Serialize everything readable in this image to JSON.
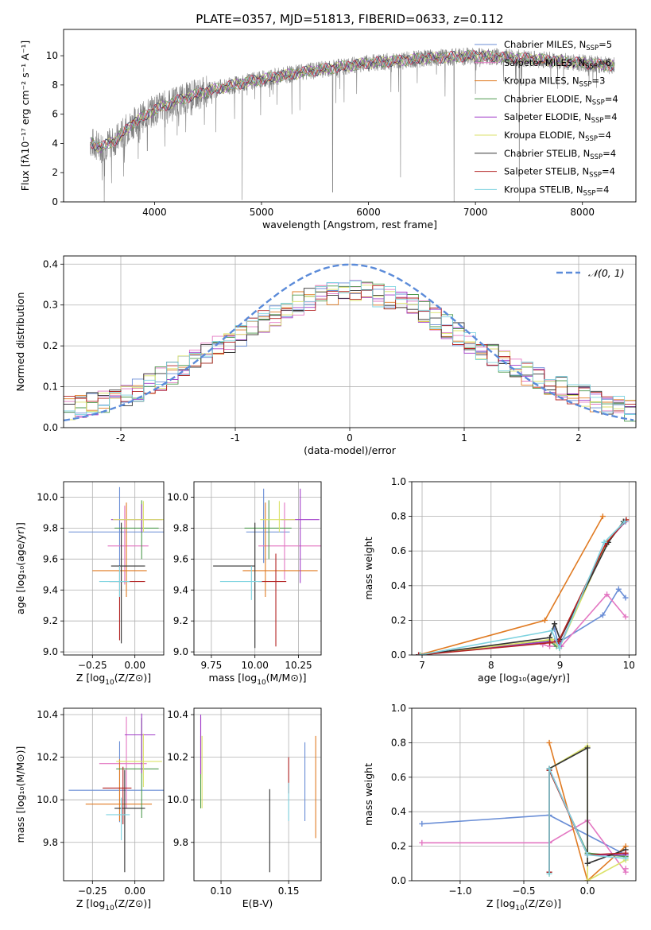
{
  "figure_title": "PLATE=0357, MJD=51813, FIBERID=0633, z=0.112",
  "model_colors": [
    "#6a8ed6",
    "#e377c2",
    "#e07b23",
    "#4e9a4e",
    "#a03cc9",
    "#dbe268",
    "#333333",
    "#b22222",
    "#7fd3e0"
  ],
  "chart_data": [
    {
      "id": "spectrum",
      "type": "line",
      "title": "PLATE=0357, MJD=51813, FIBERID=0633, z=0.112",
      "xlabel": "wavelength [Angstrom, rest frame]",
      "ylabel": "Flux [fλ10⁻¹⁷ erg cm⁻² s⁻¹ A⁻¹]",
      "xlim": [
        3150,
        8500
      ],
      "ylim": [
        0,
        11.8
      ],
      "xticks": [
        4000,
        5000,
        6000,
        7000,
        8000
      ],
      "yticks": [
        0,
        2,
        4,
        6,
        8,
        10
      ],
      "grid": false,
      "legend_position": "right",
      "data_color": "#808080",
      "continuum": {
        "x": [
          3400,
          3500,
          3650,
          3800,
          4000,
          4200,
          4500,
          4800,
          5000,
          5500,
          6000,
          6500,
          7000,
          7500,
          8000,
          8300
        ],
        "y": [
          4.1,
          3.7,
          4.3,
          5.4,
          6.3,
          6.9,
          7.6,
          8.1,
          8.4,
          9.0,
          9.5,
          9.8,
          10.0,
          9.8,
          9.5,
          9.3
        ]
      },
      "absorption_lines": [
        {
          "x": 3530,
          "depth": 4.0
        },
        {
          "x": 3710,
          "depth": 3.0
        },
        {
          "x": 3933,
          "depth": 2.5
        },
        {
          "x": 4100,
          "depth": 1.5
        },
        {
          "x": 4340,
          "depth": 1.3
        },
        {
          "x": 4820,
          "depth": 8.0
        },
        {
          "x": 5665,
          "depth": 8.5
        },
        {
          "x": 5890,
          "depth": 2.0
        },
        {
          "x": 6300,
          "depth": 8.0
        },
        {
          "x": 6800,
          "depth": 9.9
        },
        {
          "x": 7410,
          "depth": 9.8
        }
      ],
      "series": [
        {
          "name": "Chabrier MILES, N_SSP=5",
          "label_main": "Chabrier MILES, N",
          "label_sub": "SSP",
          "label_tail": "=5",
          "color": "#6a8ed6"
        },
        {
          "name": "Salpeter MILES, N_SSP=6",
          "label_main": "Salpeter MILES, N",
          "label_sub": "SSP",
          "label_tail": "=6",
          "color": "#e377c2"
        },
        {
          "name": "Kroupa MILES, N_SSP=3",
          "label_main": "Kroupa MILES, N",
          "label_sub": "SSP",
          "label_tail": "=3",
          "color": "#e07b23"
        },
        {
          "name": "Chabrier ELODIE, N_SSP=4",
          "label_main": "Chabrier ELODIE, N",
          "label_sub": "SSP",
          "label_tail": "=4",
          "color": "#4e9a4e"
        },
        {
          "name": "Salpeter ELODIE, N_SSP=4",
          "label_main": "Salpeter ELODIE, N",
          "label_sub": "SSP",
          "label_tail": "=4",
          "color": "#a03cc9"
        },
        {
          "name": "Kroupa ELODIE, N_SSP=4",
          "label_main": "Kroupa ELODIE, N",
          "label_sub": "SSP",
          "label_tail": "=4",
          "color": "#dbe268"
        },
        {
          "name": "Chabrier STELIB, N_SSP=4",
          "label_main": "Chabrier STELIB, N",
          "label_sub": "SSP",
          "label_tail": "=4",
          "color": "#333333"
        },
        {
          "name": "Salpeter STELIB, N_SSP=4",
          "label_main": "Salpeter STELIB, N",
          "label_sub": "SSP",
          "label_tail": "=4",
          "color": "#b22222"
        },
        {
          "name": "Kroupa STELIB, N_SSP=4",
          "label_main": "Kroupa STELIB, N",
          "label_sub": "SSP",
          "label_tail": "=4",
          "color": "#7fd3e0"
        }
      ]
    },
    {
      "id": "residuals",
      "type": "histogram",
      "xlabel": "(data-model)/error",
      "ylabel": "Normed distribution",
      "xlim": [
        -2.5,
        2.5
      ],
      "ylim": [
        0,
        0.42
      ],
      "xticks": [
        -2,
        -1,
        0,
        1,
        2
      ],
      "yticks": [
        0.0,
        0.1,
        0.2,
        0.3,
        0.4
      ],
      "grid": true,
      "bin_width": 0.1,
      "normal_curve": {
        "label": "𝒩(0, 1)",
        "mean": 0,
        "sigma": 1,
        "color": "#5b8bd9"
      },
      "legend_position": "top-right",
      "histogram_envelope_x": [
        -2.5,
        -2.0,
        -1.5,
        -1.0,
        -0.5,
        0.0,
        0.5,
        1.0,
        1.5,
        2.0,
        2.5
      ],
      "histogram_envelope_y": [
        0.045,
        0.07,
        0.14,
        0.22,
        0.3,
        0.34,
        0.31,
        0.22,
        0.14,
        0.08,
        0.04
      ]
    },
    {
      "id": "age_vs_Z",
      "type": "errorbar",
      "xlabel_main": "Z [log",
      "xlabel_sub": "10",
      "xlabel_tail": "(Z/Z⊙)]",
      "ylabel": "age  [log₁₀(age/yr)]",
      "xlim": [
        -0.42,
        0.17
      ],
      "ylim": [
        8.98,
        10.1
      ],
      "xticks": [
        -0.25,
        0.0
      ],
      "xtick_labels": [
        "−0.25",
        "0.00"
      ],
      "yticks": [
        9.0,
        9.2,
        9.4,
        9.6,
        9.8,
        10.0
      ],
      "grid": true,
      "points": [
        {
          "x": -0.09,
          "xerr": [
            0.3,
            0.27
          ],
          "y": 9.775,
          "yerr": [
            0.23,
            0.29
          ]
        },
        {
          "x": -0.06,
          "xerr": [
            0.1,
            0.14
          ],
          "y": 9.685,
          "yerr": [
            0.25,
            0.26
          ]
        },
        {
          "x": -0.05,
          "xerr": [
            0.2,
            0.12
          ],
          "y": 9.525,
          "yerr": [
            0.17,
            0.44
          ]
        },
        {
          "x": 0.04,
          "xerr": [
            0.16,
            0.1
          ],
          "y": 9.8,
          "yerr": [
            0.2,
            0.18
          ]
        },
        {
          "x": 0.04,
          "xerr": [
            0.18,
            0.12
          ],
          "y": 9.855,
          "yerr": [
            0.08,
            0.1
          ]
        },
        {
          "x": 0.05,
          "xerr": [
            0.18,
            0.13
          ],
          "y": 9.855,
          "yerr": [
            0.08,
            0.12
          ]
        },
        {
          "x": -0.08,
          "xerr": [
            0.06,
            0.14
          ],
          "y": 9.555,
          "yerr": [
            0.5,
            0.28
          ]
        },
        {
          "x": -0.09,
          "xerr": [
            0.06,
            0.15
          ],
          "y": 9.455,
          "yerr": [
            0.38,
            0.1
          ]
        },
        {
          "x": -0.09,
          "xerr": [
            0.12,
            0.06
          ],
          "y": 9.455,
          "yerr": [
            0.1,
            0.1
          ]
        }
      ]
    },
    {
      "id": "age_vs_mass",
      "type": "errorbar",
      "xlabel_main": "mass [log",
      "xlabel_sub": "10",
      "xlabel_tail": "(M/M⊙)]",
      "ylabel": "",
      "xlim": [
        9.65,
        10.38
      ],
      "ylim": [
        8.98,
        10.1
      ],
      "xticks": [
        9.75,
        10.0,
        10.25
      ],
      "xtick_labels": [
        "9.75",
        "10.00",
        "10.25"
      ],
      "yticks": [
        9.0,
        9.2,
        9.4,
        9.6,
        9.8,
        10.0
      ],
      "grid": true,
      "points": [
        {
          "x": 10.05,
          "xerr": [
            0.1,
            0.15
          ],
          "y": 9.775,
          "yerr": [
            0.2,
            0.28
          ]
        },
        {
          "x": 10.17,
          "xerr": [
            0.15,
            0.25
          ],
          "y": 9.685,
          "yerr": [
            0.22,
            0.28
          ]
        },
        {
          "x": 10.06,
          "xerr": [
            0.13,
            0.3
          ],
          "y": 9.525,
          "yerr": [
            0.17,
            0.44
          ]
        },
        {
          "x": 10.08,
          "xerr": [
            0.14,
            0.13
          ],
          "y": 9.8,
          "yerr": [
            0.2,
            0.18
          ]
        },
        {
          "x": 10.26,
          "xerr": [
            0.11,
            0.11
          ],
          "y": 9.855,
          "yerr": [
            0.41,
            0.2
          ]
        },
        {
          "x": 10.14,
          "xerr": [
            0.11,
            0.09
          ],
          "y": 9.855,
          "yerr": [
            0.08,
            0.12
          ]
        },
        {
          "x": 10.0,
          "xerr": [
            0.24,
            0.0
          ],
          "y": 9.555,
          "yerr": [
            0.53,
            0.28
          ]
        },
        {
          "x": 10.12,
          "xerr": [
            0.1,
            0.06
          ],
          "y": 9.455,
          "yerr": [
            0.42,
            0.18
          ]
        },
        {
          "x": 9.98,
          "xerr": [
            0.18,
            0.06
          ],
          "y": 9.455,
          "yerr": [
            0.12,
            0.1
          ]
        }
      ]
    },
    {
      "id": "weight_vs_age",
      "type": "line",
      "xlabel": "age  [log₁₀(age/yr)]",
      "ylabel": "mass weight",
      "xlim": [
        6.85,
        10.1
      ],
      "ylim": [
        0,
        1.0
      ],
      "xticks": [
        7,
        8,
        9,
        10
      ],
      "yticks": [
        0.0,
        0.2,
        0.4,
        0.6,
        0.8,
        1.0
      ],
      "grid": true,
      "series": [
        {
          "x": [
            8.92,
            8.97,
            9.62,
            9.85,
            9.95
          ],
          "y": [
            0.15,
            0.07,
            0.23,
            0.38,
            0.33
          ]
        },
        {
          "x": [
            8.75,
            8.85,
            9.02,
            9.68,
            9.95
          ],
          "y": [
            0.06,
            0.05,
            0.05,
            0.35,
            0.22
          ]
        },
        {
          "x": [
            6.95,
            8.78,
            9.62
          ],
          "y": [
            0.0,
            0.2,
            0.8
          ]
        },
        {
          "x": [
            6.95,
            8.85,
            8.95,
            9.68,
            9.92
          ],
          "y": [
            0.0,
            0.08,
            0.05,
            0.64,
            0.77
          ]
        },
        {
          "x": [
            6.95,
            8.92,
            8.99,
            9.68,
            9.95
          ],
          "y": [
            0.0,
            0.08,
            0.05,
            0.65,
            0.77
          ]
        },
        {
          "x": [
            6.98,
            8.88,
            8.99,
            9.68,
            9.96
          ],
          "y": [
            0.0,
            0.09,
            0.04,
            0.65,
            0.78
          ]
        },
        {
          "x": [
            6.95,
            8.85,
            8.92,
            9.0,
            9.7,
            9.92
          ],
          "y": [
            0.0,
            0.1,
            0.18,
            0.09,
            0.65,
            0.77
          ]
        },
        {
          "x": [
            6.95,
            8.85,
            8.98,
            9.66,
            9.96
          ],
          "y": [
            0.0,
            0.07,
            0.08,
            0.64,
            0.78
          ]
        },
        {
          "x": [
            6.97,
            8.88,
            8.99,
            9.64,
            9.94
          ],
          "y": [
            0.0,
            0.14,
            0.04,
            0.65,
            0.77
          ]
        }
      ]
    },
    {
      "id": "mass_vs_Z",
      "type": "errorbar",
      "xlabel_main": "Z [log",
      "xlabel_sub": "10",
      "xlabel_tail": "(Z/Z⊙)]",
      "ylabel": "mass [log₁₀(M/M⊙)]",
      "xlim": [
        -0.42,
        0.17
      ],
      "ylim": [
        9.62,
        10.43
      ],
      "xticks": [
        -0.25,
        0.0
      ],
      "xtick_labels": [
        "−0.25",
        "0.00"
      ],
      "yticks": [
        9.8,
        10.0,
        10.2,
        10.4
      ],
      "ytick_labels": [
        "9.8",
        "10.0",
        "10.2",
        "10.4"
      ],
      "grid": true,
      "points": [
        {
          "x": -0.09,
          "xerr": [
            0.3,
            0.27
          ],
          "y": 10.045,
          "yerr": [
            0.15,
            0.23
          ]
        },
        {
          "x": -0.05,
          "xerr": [
            0.16,
            0.12
          ],
          "y": 10.17,
          "yerr": [
            0.21,
            0.22
          ]
        },
        {
          "x": -0.09,
          "xerr": [
            0.2,
            0.19
          ],
          "y": 9.98,
          "yerr": [
            0.08,
            0.21
          ]
        },
        {
          "x": 0.04,
          "xerr": [
            0.15,
            0.1
          ],
          "y": 10.145,
          "yerr": [
            0.23,
            0.24
          ]
        },
        {
          "x": 0.04,
          "xerr": [
            0.1,
            0.08
          ],
          "y": 10.305,
          "yerr": [
            0.18,
            0.1
          ]
        },
        {
          "x": 0.05,
          "xerr": [
            0.16,
            0.11
          ],
          "y": 10.18,
          "yerr": [
            0.12,
            0.13
          ]
        },
        {
          "x": -0.06,
          "xerr": [
            0.06,
            0.12
          ],
          "y": 9.96,
          "yerr": [
            0.3,
            0.18
          ]
        },
        {
          "x": -0.07,
          "xerr": [
            0.12,
            0.05
          ],
          "y": 10.055,
          "yerr": [
            0.17,
            0.1
          ]
        },
        {
          "x": -0.08,
          "xerr": [
            0.09,
            0.05
          ],
          "y": 9.93,
          "yerr": [
            0.12,
            0.08
          ]
        }
      ]
    },
    {
      "id": "mass_vs_ebv",
      "type": "errorbar",
      "xlabel": "E(B-V)",
      "ylabel": "",
      "xlim": [
        0.08,
        0.174
      ],
      "ylim": [
        9.62,
        10.43
      ],
      "xticks": [
        0.1,
        0.15
      ],
      "xtick_labels": [
        "0.10",
        "0.15"
      ],
      "yticks": [
        9.8,
        10.0,
        10.2,
        10.4
      ],
      "ytick_labels": [
        "9.8",
        "10.0",
        "10.2",
        "10.4"
      ],
      "grid": true,
      "points": [
        {
          "x": 0.162,
          "y": 10.08,
          "yerr": [
            0.18,
            0.19
          ]
        },
        {
          "x": 0.085,
          "y": 10.24,
          "yerr": [
            0.14,
            0.15
          ]
        },
        {
          "x": 0.17,
          "y": 10.06,
          "yerr": [
            0.24,
            0.24
          ]
        },
        {
          "x": 0.085,
          "y": 10.13,
          "yerr": [
            0.17,
            0.17
          ]
        },
        {
          "x": 0.085,
          "y": 10.3,
          "yerr": [
            0.18,
            0.1
          ]
        },
        {
          "x": 0.086,
          "y": 10.13,
          "yerr": [
            0.17,
            0.17
          ]
        },
        {
          "x": 0.136,
          "y": 9.85,
          "yerr": [
            0.19,
            0.2
          ]
        },
        {
          "x": 0.15,
          "y": 10.11,
          "yerr": [
            0.08,
            0.09
          ]
        },
        {
          "x": 0.15,
          "y": 9.99,
          "yerr": [
            0.09,
            0.09
          ]
        }
      ]
    },
    {
      "id": "weight_vs_Z",
      "type": "line",
      "xlabel_main": "Z [log",
      "xlabel_sub": "10",
      "xlabel_tail": "(Z/Z⊙)]",
      "ylabel": "mass weight",
      "xlim": [
        -1.38,
        0.38
      ],
      "ylim": [
        0,
        1.0
      ],
      "xticks": [
        -1.0,
        -0.5,
        0.0
      ],
      "xtick_labels": [
        "−1.0",
        "−0.5",
        "0.0"
      ],
      "yticks": [
        0.0,
        0.2,
        0.4,
        0.6,
        0.8,
        1.0
      ],
      "grid": true,
      "series": [
        {
          "x": [
            -1.3,
            -0.3,
            0.3,
            0.3
          ],
          "y": [
            0.33,
            0.38,
            0.15,
            0.15
          ]
        },
        {
          "x": [
            -1.3,
            -0.3,
            0.0,
            0.3,
            0.3
          ],
          "y": [
            0.22,
            0.22,
            0.35,
            0.05,
            0.07
          ]
        },
        {
          "x": [
            -0.3,
            0.0,
            0.3
          ],
          "y": [
            0.8,
            0.0,
            0.2
          ]
        },
        {
          "x": [
            -0.3,
            -0.3,
            0.0,
            0.3
          ],
          "y": [
            0.05,
            0.64,
            0.16,
            0.14
          ]
        },
        {
          "x": [
            -0.3,
            -0.3,
            0.0,
            0.3
          ],
          "y": [
            0.05,
            0.65,
            0.15,
            0.15
          ]
        },
        {
          "x": [
            -0.3,
            -0.3,
            0.0,
            0.0,
            0.3
          ],
          "y": [
            0.04,
            0.65,
            0.78,
            0.0,
            0.12
          ]
        },
        {
          "x": [
            -0.3,
            -0.3,
            0.0,
            0.0,
            0.3
          ],
          "y": [
            0.05,
            0.65,
            0.77,
            0.1,
            0.18
          ]
        },
        {
          "x": [
            -0.3,
            -0.3,
            0.0,
            0.3
          ],
          "y": [
            0.05,
            0.64,
            0.15,
            0.16
          ]
        },
        {
          "x": [
            -0.3,
            -0.3,
            0.0,
            0.3
          ],
          "y": [
            0.04,
            0.65,
            0.15,
            0.13
          ]
        }
      ]
    }
  ]
}
